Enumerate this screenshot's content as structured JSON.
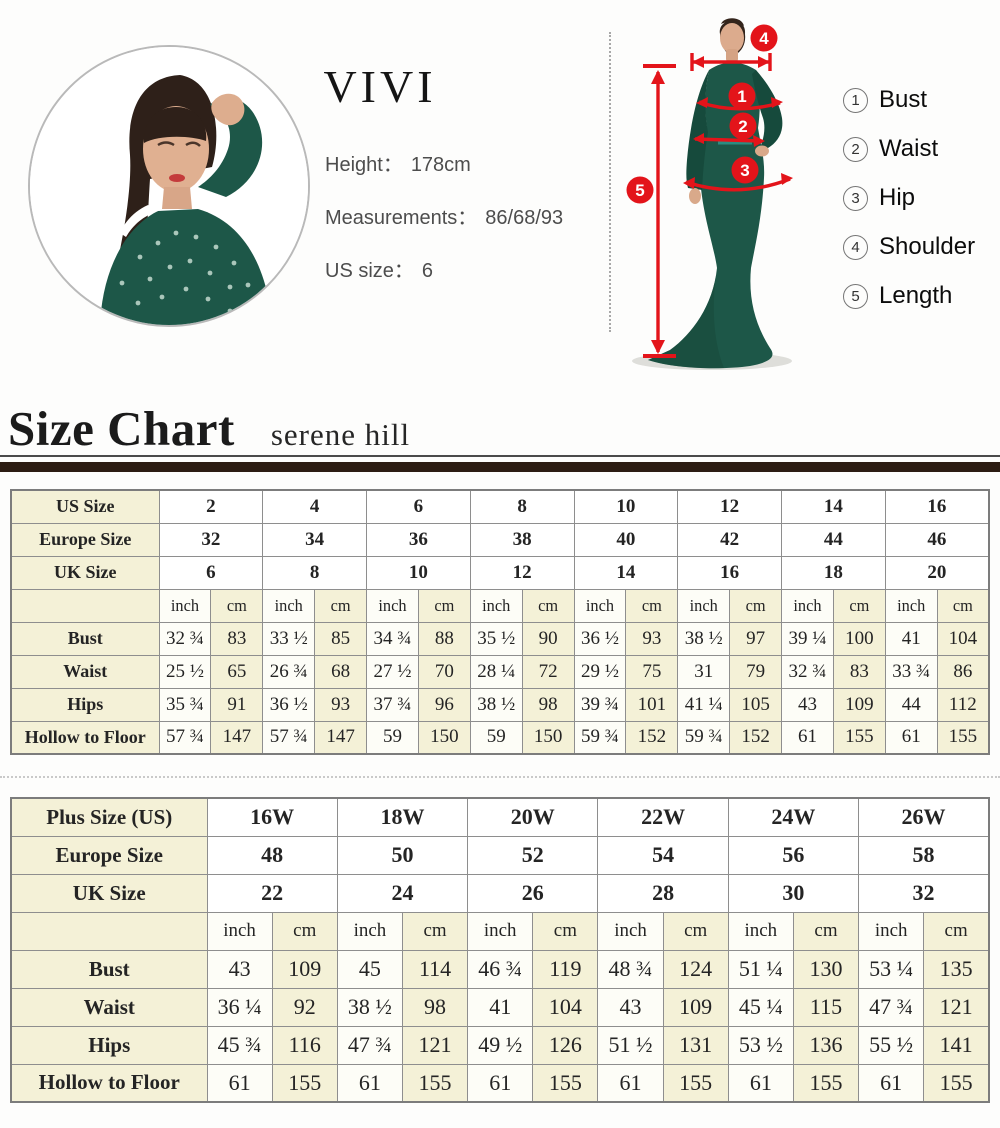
{
  "model_card": {
    "brand": "VIVI",
    "height_label": "Height：",
    "height_value": "178cm",
    "measurements_label": "Measurements：",
    "measurements_value": "86/68/93",
    "us_size_label": "US size：",
    "us_size_value": "6"
  },
  "diagram": {
    "legend": [
      {
        "num": "1",
        "label": "Bust"
      },
      {
        "num": "2",
        "label": "Waist"
      },
      {
        "num": "3",
        "label": "Hip"
      },
      {
        "num": "4",
        "label": "Shoulder"
      },
      {
        "num": "5",
        "label": "Length"
      }
    ]
  },
  "size_chart": {
    "title": "Size Chart",
    "subtitle": "serene hill"
  },
  "tables": [
    {
      "id": "standard",
      "units": {
        "inch": "inch",
        "cm": "cm"
      },
      "size_rows": [
        {
          "label": "US Size",
          "values": [
            "2",
            "4",
            "6",
            "8",
            "10",
            "12",
            "14",
            "16"
          ]
        },
        {
          "label": "Europe Size",
          "values": [
            "32",
            "34",
            "36",
            "38",
            "40",
            "42",
            "44",
            "46"
          ]
        },
        {
          "label": "UK Size",
          "values": [
            "6",
            "8",
            "10",
            "12",
            "14",
            "16",
            "18",
            "20"
          ]
        }
      ],
      "measure_rows": [
        {
          "label": "Bust",
          "values": [
            "32 ¾",
            "83",
            "33 ½",
            "85",
            "34 ¾",
            "88",
            "35 ½",
            "90",
            "36 ½",
            "93",
            "38 ½",
            "97",
            "39 ¼",
            "100",
            "41",
            "104"
          ]
        },
        {
          "label": "Waist",
          "values": [
            "25 ½",
            "65",
            "26 ¾",
            "68",
            "27 ½",
            "70",
            "28 ¼",
            "72",
            "29 ½",
            "75",
            "31",
            "79",
            "32 ¾",
            "83",
            "33 ¾",
            "86"
          ]
        },
        {
          "label": "Hips",
          "values": [
            "35 ¾",
            "91",
            "36 ½",
            "93",
            "37 ¾",
            "96",
            "38 ½",
            "98",
            "39 ¾",
            "101",
            "41 ¼",
            "105",
            "43",
            "109",
            "44",
            "112"
          ]
        },
        {
          "label": "Hollow to Floor",
          "values": [
            "57 ¾",
            "147",
            "57 ¾",
            "147",
            "59",
            "150",
            "59",
            "150",
            "59 ¾",
            "152",
            "59 ¾",
            "152",
            "61",
            "155",
            "61",
            "155"
          ]
        }
      ]
    },
    {
      "id": "plus",
      "units": {
        "inch": "inch",
        "cm": "cm"
      },
      "size_rows": [
        {
          "label": "Plus Size (US)",
          "values": [
            "16W",
            "18W",
            "20W",
            "22W",
            "24W",
            "26W"
          ]
        },
        {
          "label": "Europe Size",
          "values": [
            "48",
            "50",
            "52",
            "54",
            "56",
            "58"
          ]
        },
        {
          "label": "UK Size",
          "values": [
            "22",
            "24",
            "26",
            "28",
            "30",
            "32"
          ]
        }
      ],
      "measure_rows": [
        {
          "label": "Bust",
          "values": [
            "43",
            "109",
            "45",
            "114",
            "46 ¾",
            "119",
            "48 ¾",
            "124",
            "51 ¼",
            "130",
            "53 ¼",
            "135"
          ]
        },
        {
          "label": "Waist",
          "values": [
            "36 ¼",
            "92",
            "38 ½",
            "98",
            "41",
            "104",
            "43",
            "109",
            "45 ¼",
            "115",
            "47 ¾",
            "121"
          ]
        },
        {
          "label": "Hips",
          "values": [
            "45 ¾",
            "116",
            "47 ¾",
            "121",
            "49 ½",
            "126",
            "51 ½",
            "131",
            "53 ½",
            "136",
            "55 ½",
            "141"
          ]
        },
        {
          "label": "Hollow to Floor",
          "values": [
            "61",
            "155",
            "61",
            "155",
            "61",
            "155",
            "61",
            "155",
            "61",
            "155",
            "61",
            "155"
          ]
        }
      ]
    }
  ],
  "colors": {
    "accent_red": "#e3141a",
    "cream": "#f4f1d7",
    "bar_brown": "#2c1c12",
    "dress_green": "#1d5748"
  }
}
